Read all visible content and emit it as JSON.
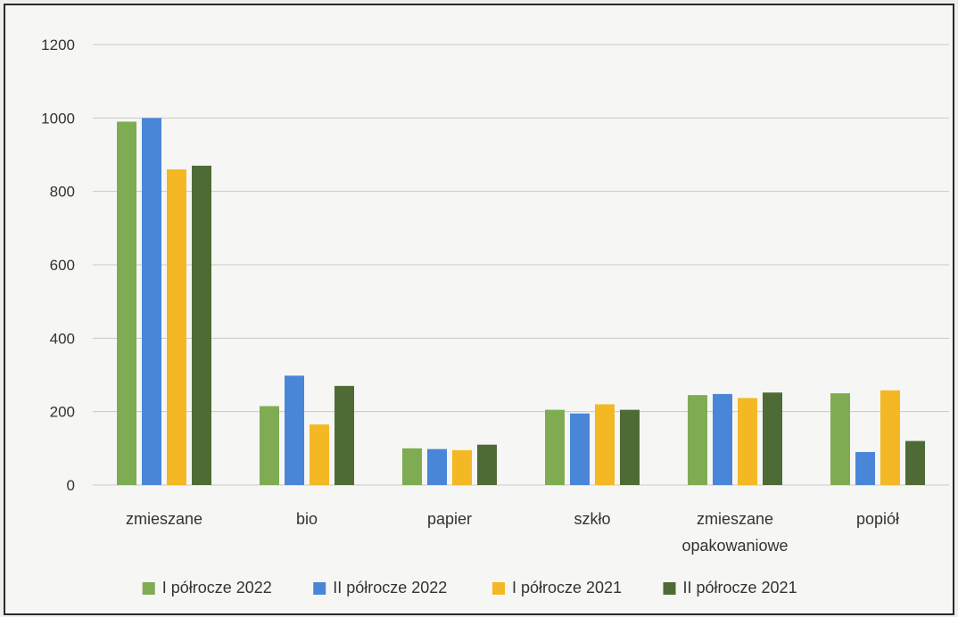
{
  "chart_data": {
    "type": "bar",
    "categories": [
      "zmieszane",
      "bio",
      "papier",
      "szkło",
      "zmieszane opakowaniowe",
      "popiół"
    ],
    "series": [
      {
        "name": "I półrocze 2022",
        "color": "#7fac52",
        "values": [
          990,
          215,
          100,
          205,
          245,
          250
        ]
      },
      {
        "name": "II półrocze 2022",
        "color": "#4a86d8",
        "values": [
          1000,
          298,
          98,
          195,
          248,
          90
        ]
      },
      {
        "name": "I półrocze 2021",
        "color": "#f3b824",
        "values": [
          860,
          165,
          95,
          220,
          237,
          258
        ]
      },
      {
        "name": "II półrocze 2021",
        "color": "#4e6b35",
        "values": [
          870,
          270,
          110,
          205,
          252,
          120
        ]
      }
    ],
    "ylim": [
      0,
      1200
    ],
    "yticks": [
      "0",
      "200",
      "400",
      "600",
      "800",
      "1000",
      "1200"
    ],
    "grid": true,
    "legend_position": "bottom"
  }
}
